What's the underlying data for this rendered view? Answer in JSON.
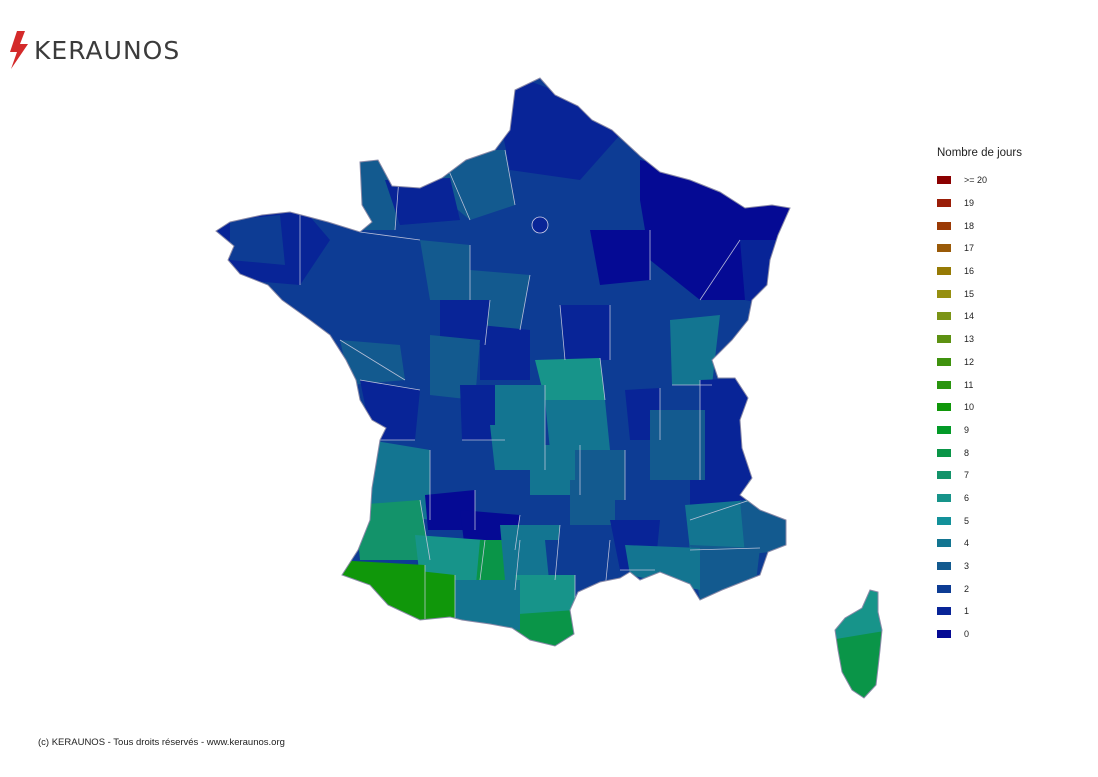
{
  "brand": {
    "name": "KERAUNOS",
    "accent": "#d42a2a"
  },
  "legend": {
    "title": "Nombre de jours",
    "items": [
      {
        "label": ">= 20",
        "color": "#8b0000"
      },
      {
        "label": "19",
        "color": "#9a1e08"
      },
      {
        "label": "18",
        "color": "#9a3a05"
      },
      {
        "label": "17",
        "color": "#9a5a08"
      },
      {
        "label": "16",
        "color": "#967a05"
      },
      {
        "label": "15",
        "color": "#968f10"
      },
      {
        "label": "14",
        "color": "#7b9416"
      },
      {
        "label": "13",
        "color": "#5d9112"
      },
      {
        "label": "12",
        "color": "#3f920e"
      },
      {
        "label": "11",
        "color": "#2a950f"
      },
      {
        "label": "10",
        "color": "#10970a"
      },
      {
        "label": "9",
        "color": "#039a28"
      },
      {
        "label": "8",
        "color": "#0a9548"
      },
      {
        "label": "7",
        "color": "#13936a"
      },
      {
        "label": "6",
        "color": "#17948a"
      },
      {
        "label": "5",
        "color": "#13919a"
      },
      {
        "label": "4",
        "color": "#137591"
      },
      {
        "label": "3",
        "color": "#135a8f"
      },
      {
        "label": "2",
        "color": "#0d3c94"
      },
      {
        "label": "1",
        "color": "#082497"
      },
      {
        "label": "0",
        "color": "#050a94"
      }
    ]
  },
  "footer": "(c) KERAUNOS - Tous droits réservés - www.keraunos.org"
}
